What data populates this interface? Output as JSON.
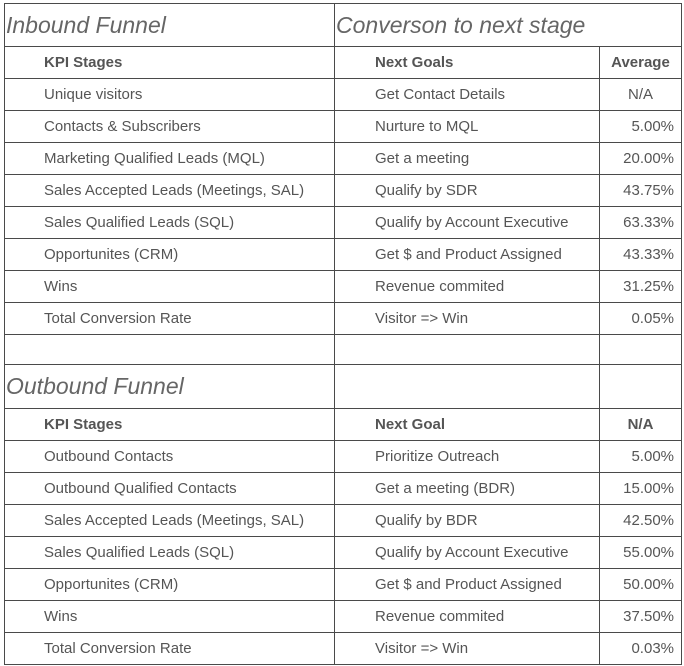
{
  "inbound": {
    "title": "Inbound Funnel",
    "conversion_title": "Converson to next stage",
    "headers": {
      "stage": "KPI Stages",
      "goal": "Next Goals",
      "avg": "Average"
    },
    "rows": [
      {
        "stage": "Unique visitors",
        "goal": "Get Contact Details",
        "avg": "N/A"
      },
      {
        "stage": "Contacts & Subscribers",
        "goal": "Nurture to MQL",
        "avg": "5.00%"
      },
      {
        "stage": "Marketing Qualified Leads (MQL)",
        "goal": "Get a meeting",
        "avg": "20.00%"
      },
      {
        "stage": "Sales Accepted Leads (Meetings, SAL)",
        "goal": "Qualify by SDR",
        "avg": "43.75%"
      },
      {
        "stage": "Sales Qualified Leads (SQL)",
        "goal": "Qualify by Account Executive",
        "avg": "63.33%"
      },
      {
        "stage": "Opportunites (CRM)",
        "goal": "Get $ and Product Assigned",
        "avg": "43.33%"
      },
      {
        "stage": "Wins",
        "goal": "Revenue commited",
        "avg": "31.25%"
      },
      {
        "stage": "Total Conversion Rate",
        "goal": "Visitor => Win",
        "avg": "0.05%"
      }
    ]
  },
  "outbound": {
    "title": "Outbound Funnel",
    "headers": {
      "stage": "KPI Stages",
      "goal": "Next Goal",
      "avg": "N/A"
    },
    "rows": [
      {
        "stage": "Outbound Contacts",
        "goal": "Prioritize Outreach",
        "avg": "5.00%"
      },
      {
        "stage": "Outbound Qualified Contacts",
        "goal": "Get a meeting (BDR)",
        "avg": "15.00%"
      },
      {
        "stage": "Sales Accepted Leads (Meetings, SAL)",
        "goal": "Qualify by BDR",
        "avg": "42.50%"
      },
      {
        "stage": "Sales Qualified Leads (SQL)",
        "goal": "Qualify by Account Executive",
        "avg": "55.00%"
      },
      {
        "stage": "Opportunites (CRM)",
        "goal": "Get $ and Product Assigned",
        "avg": "50.00%"
      },
      {
        "stage": "Wins",
        "goal": "Revenue commited",
        "avg": "37.50%"
      },
      {
        "stage": "Total Conversion Rate",
        "goal": "Visitor => Win",
        "avg": "0.03%"
      }
    ]
  }
}
